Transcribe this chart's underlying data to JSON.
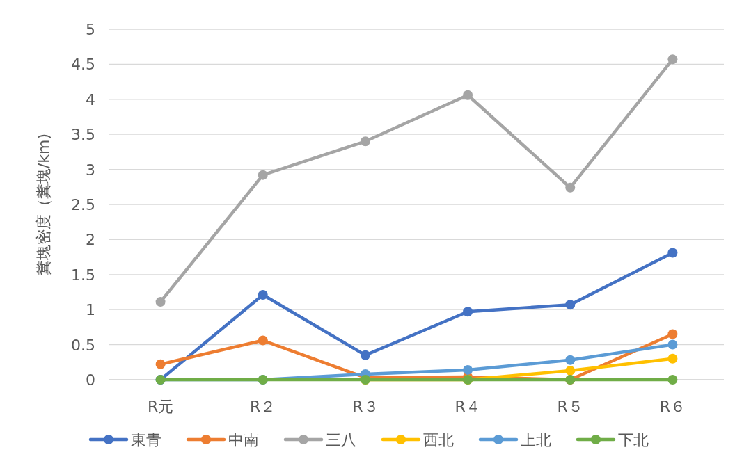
{
  "chart_data": {
    "type": "line",
    "ylabel": "糞塊密度（糞塊/km)",
    "categories": [
      "R元",
      "R２",
      "R３",
      "R４",
      "R５",
      "R６"
    ],
    "ylim": [
      0,
      5
    ],
    "yticks": [
      0,
      0.5,
      1,
      1.5,
      2,
      2.5,
      3,
      3.5,
      4,
      4.5,
      5
    ],
    "grid": "y",
    "legend": "bottom",
    "marker": "circle",
    "series": [
      {
        "name": "東青",
        "color": "#4472c4",
        "values": [
          0,
          1.21,
          0.35,
          0.97,
          1.07,
          1.81
        ]
      },
      {
        "name": "中南",
        "color": "#ed7d31",
        "values": [
          0.22,
          0.56,
          0.03,
          0.04,
          0,
          0.65
        ]
      },
      {
        "name": "三八",
        "color": "#a5a5a5",
        "values": [
          1.11,
          2.92,
          3.4,
          4.06,
          2.74,
          4.57
        ]
      },
      {
        "name": "西北",
        "color": "#ffc000",
        "values": [
          null,
          null,
          0,
          0,
          0.13,
          0.3
        ]
      },
      {
        "name": "上北",
        "color": "#5b9bd5",
        "values": [
          0,
          0,
          0.08,
          0.14,
          0.28,
          0.5
        ]
      },
      {
        "name": "下北",
        "color": "#70ad47",
        "values": [
          0,
          0,
          0,
          0,
          0,
          0
        ]
      }
    ]
  }
}
